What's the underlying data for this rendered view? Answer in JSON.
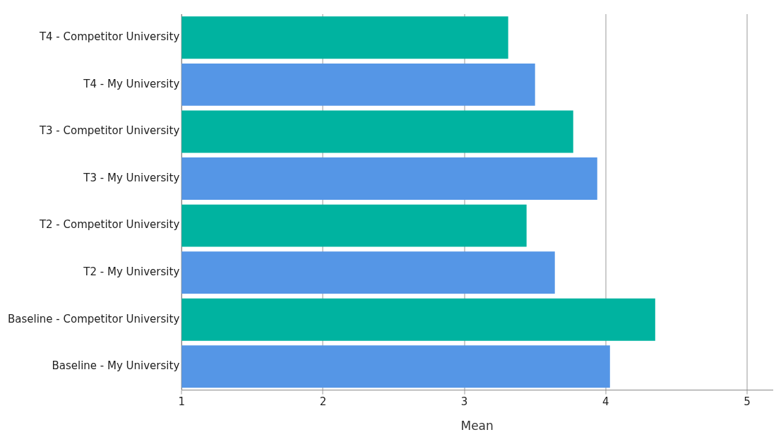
{
  "chart_data": {
    "type": "bar",
    "orientation": "horizontal",
    "xlabel": "Mean",
    "categories": [
      "T4 - Competitor University",
      "T4 - My University",
      "T3 - Competitor University",
      "T3 - My University",
      "T2 - Competitor University",
      "T2 - My University",
      "Baseline - Competitor University",
      "Baseline - My University"
    ],
    "values": [
      3.31,
      3.5,
      3.77,
      3.94,
      3.44,
      3.64,
      4.35,
      4.03
    ],
    "colors": [
      "#00b3a0",
      "#5596e6",
      "#00b3a0",
      "#5596e6",
      "#00b3a0",
      "#5596e6",
      "#00b3a0",
      "#5596e6"
    ],
    "xlim": [
      1,
      5.18
    ],
    "xticks": [
      1,
      2,
      3,
      4,
      5
    ],
    "grid": "x",
    "legend": false
  }
}
